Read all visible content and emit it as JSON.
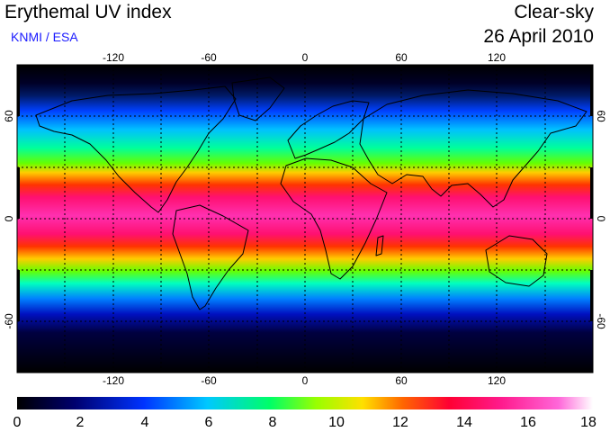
{
  "header": {
    "title": "Erythemal UV index",
    "credit": "KNMI / ESA",
    "mode": "Clear-sky",
    "date": "26 April 2010"
  },
  "map": {
    "projection": "equirectangular",
    "lon_range": [
      -180,
      180
    ],
    "lat_range": [
      -90,
      90
    ],
    "grid_step_deg": 30,
    "lon_tick_labels": [
      "-120",
      "-60",
      "0",
      "60",
      "120"
    ],
    "lon_tick_values": [
      -120,
      -60,
      0,
      60,
      120
    ],
    "lat_tick_labels": [
      "60",
      "0",
      "-60"
    ],
    "lat_tick_values": [
      60,
      0,
      -60
    ],
    "peak_uv_band_lat": [
      -15,
      25
    ]
  },
  "colorbar": {
    "min": 0,
    "max": 18,
    "tick_labels": [
      "0",
      "2",
      "4",
      "6",
      "8",
      "10",
      "12",
      "14",
      "16",
      "18"
    ],
    "tick_values": [
      0,
      2,
      4,
      6,
      8,
      10,
      12,
      14,
      16,
      18
    ],
    "colors": [
      "#000000",
      "#00006e",
      "#0033ff",
      "#00c8ff",
      "#00ff66",
      "#99ff00",
      "#ffe000",
      "#ff6600",
      "#ff0033",
      "#ff1a8c",
      "#ff66d9",
      "#ffffff"
    ]
  }
}
